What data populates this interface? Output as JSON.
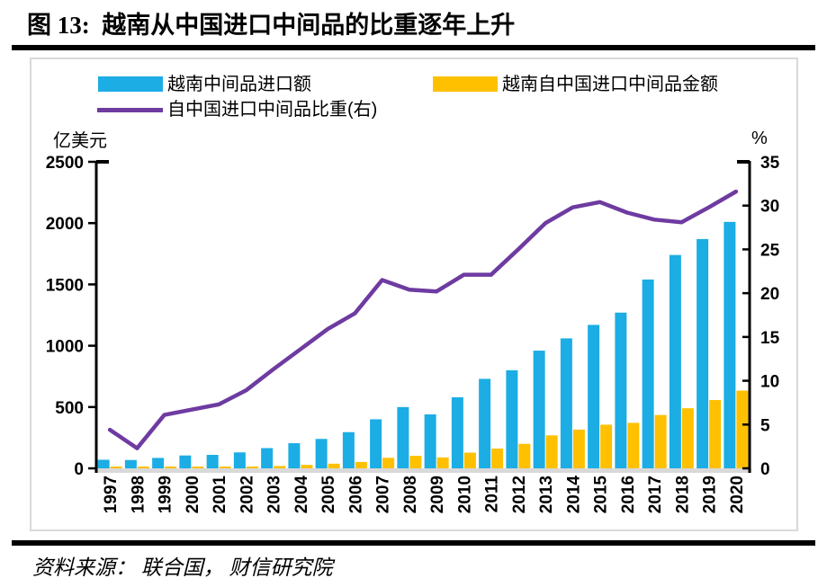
{
  "page": {
    "title": "图 13:  越南从中国进口中间品的比重逐年上升",
    "source": "资料来源： 联合国， 财信研究院"
  },
  "colors": {
    "blue": "#1CADE4",
    "gold": "#FFC000",
    "purple": "#6E3BA1",
    "frame": "#D9D9D9",
    "baseline": "#D9D9D9",
    "axis": "#000000"
  },
  "chart_data": {
    "type": "bar",
    "subtype": "grouped-bars-with-line",
    "categories": [
      "1997",
      "1998",
      "1999",
      "2000",
      "2001",
      "2002",
      "2003",
      "2004",
      "2005",
      "2006",
      "2007",
      "2008",
      "2009",
      "2010",
      "2011",
      "2012",
      "2013",
      "2014",
      "2015",
      "2016",
      "2017",
      "2018",
      "2019",
      "2020"
    ],
    "series": [
      {
        "name": "越南中间品进口额",
        "type": "bar",
        "axis": "left",
        "color": "#1CADE4",
        "values": [
          70,
          68,
          85,
          105,
          110,
          130,
          165,
          205,
          240,
          295,
          400,
          500,
          440,
          580,
          730,
          800,
          960,
          1060,
          1170,
          1270,
          1540,
          1740,
          1870,
          2010
        ]
      },
      {
        "name": "越南自中国进口中间品金额",
        "type": "bar",
        "axis": "left",
        "color": "#FFC000",
        "values": [
          3,
          2,
          5,
          7,
          8,
          12,
          19,
          28,
          38,
          52,
          86,
          102,
          89,
          128,
          161,
          200,
          269,
          316,
          356,
          371,
          435,
          490,
          557,
          634
        ]
      },
      {
        "name": "自中国进口中间品比重(右)",
        "type": "line",
        "axis": "right",
        "color": "#6E3BA1",
        "values": [
          4.4,
          2.3,
          6.1,
          6.7,
          7.3,
          8.9,
          11.3,
          13.6,
          15.9,
          17.7,
          21.5,
          20.4,
          20.2,
          22.1,
          22.1,
          25.0,
          28.0,
          29.8,
          30.4,
          29.2,
          28.4,
          28.1,
          29.8,
          31.6
        ]
      }
    ],
    "left_axis": {
      "title": "亿美元",
      "min": 0,
      "max": 2500,
      "step": 500,
      "ticks": [
        0,
        500,
        1000,
        1500,
        2000,
        2500
      ]
    },
    "right_axis": {
      "title": "%",
      "min": 0,
      "max": 35,
      "step": 5,
      "ticks": [
        0,
        5,
        10,
        15,
        20,
        25,
        30,
        35
      ]
    },
    "legend_position": "top-left",
    "grid": false,
    "x_label_rotation": -90
  }
}
